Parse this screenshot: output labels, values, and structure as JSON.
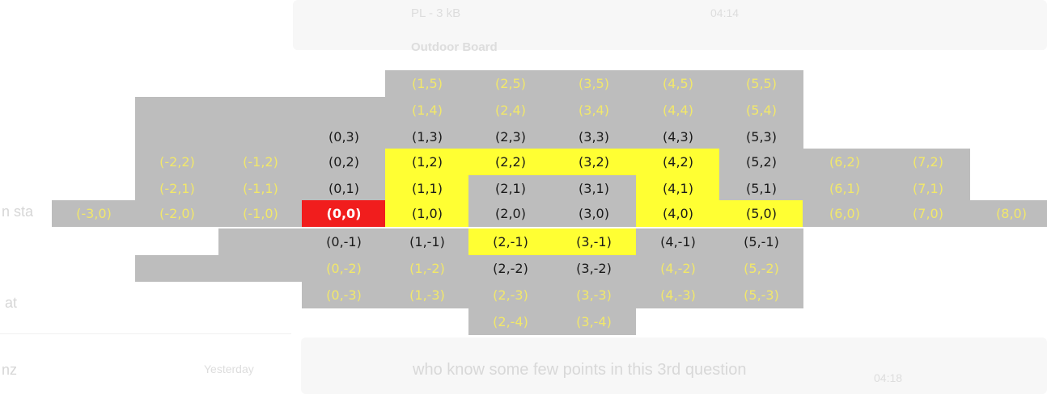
{
  "background_chat": {
    "preview_file_label": "PL - 3 kB",
    "preview_time": "04:14",
    "preview_caption": "Outdoor Board",
    "left_truncated_1": "n sta",
    "left_truncated_2": "at",
    "left_truncated_3": "nz",
    "left_day": "Yesterday",
    "message_text": "who know some few points in this 3rd question",
    "message_time": "04:18"
  },
  "colors": {
    "gray": "#bdbdbd",
    "yellow": "#ffff33",
    "red": "#f11d1d",
    "label_yellow": "#f2e86a",
    "label_black": "#1a1a1a",
    "label_white": "#ffffff"
  },
  "grid": {
    "cells": [
      {
        "label": "(1,5)",
        "fill": "gray",
        "text": "yellow"
      },
      {
        "label": "(2,5)",
        "fill": "gray",
        "text": "yellow"
      },
      {
        "label": "(3,5)",
        "fill": "gray",
        "text": "yellow"
      },
      {
        "label": "(4,5)",
        "fill": "gray",
        "text": "yellow"
      },
      {
        "label": "(5,5)",
        "fill": "gray",
        "text": "yellow"
      },
      {
        "label": "",
        "fill": "gray",
        "text": "yellow"
      },
      {
        "label": "",
        "fill": "gray",
        "text": "yellow"
      },
      {
        "label": "",
        "fill": "gray",
        "text": "yellow"
      },
      {
        "label": "(1,4)",
        "fill": "gray",
        "text": "yellow"
      },
      {
        "label": "(2,4)",
        "fill": "gray",
        "text": "yellow"
      },
      {
        "label": "(3,4)",
        "fill": "gray",
        "text": "yellow"
      },
      {
        "label": "(4,4)",
        "fill": "gray",
        "text": "yellow"
      },
      {
        "label": "(5,4)",
        "fill": "gray",
        "text": "yellow"
      },
      {
        "label": "",
        "fill": "gray",
        "text": "yellow"
      },
      {
        "label": "",
        "fill": "gray",
        "text": "yellow"
      },
      {
        "label": "(0,3)",
        "fill": "gray",
        "text": "black"
      },
      {
        "label": "(1,3)",
        "fill": "gray",
        "text": "black"
      },
      {
        "label": "(2,3)",
        "fill": "gray",
        "text": "black"
      },
      {
        "label": "(3,3)",
        "fill": "gray",
        "text": "black"
      },
      {
        "label": "(4,3)",
        "fill": "gray",
        "text": "black"
      },
      {
        "label": "(5,3)",
        "fill": "gray",
        "text": "black"
      },
      {
        "label": "(-2,2)",
        "fill": "gray",
        "text": "yellow"
      },
      {
        "label": "(-1,2)",
        "fill": "gray",
        "text": "yellow"
      },
      {
        "label": "(0,2)",
        "fill": "gray",
        "text": "black"
      },
      {
        "label": "(1,2)",
        "fill": "yellow",
        "text": "black"
      },
      {
        "label": "(2,2)",
        "fill": "yellow",
        "text": "black"
      },
      {
        "label": "(3,2)",
        "fill": "yellow",
        "text": "black"
      },
      {
        "label": "(4,2)",
        "fill": "yellow",
        "text": "black"
      },
      {
        "label": "(5,2)",
        "fill": "gray",
        "text": "black"
      },
      {
        "label": "(6,2)",
        "fill": "gray",
        "text": "yellow"
      },
      {
        "label": "(7,2)",
        "fill": "gray",
        "text": "yellow"
      },
      {
        "label": "(-2,1)",
        "fill": "gray",
        "text": "yellow"
      },
      {
        "label": "(-1,1)",
        "fill": "gray",
        "text": "yellow"
      },
      {
        "label": "(0,1)",
        "fill": "gray",
        "text": "black"
      },
      {
        "label": "(1,1)",
        "fill": "yellow",
        "text": "black"
      },
      {
        "label": "(2,1)",
        "fill": "gray",
        "text": "black"
      },
      {
        "label": "(3,1)",
        "fill": "gray",
        "text": "black"
      },
      {
        "label": "(4,1)",
        "fill": "yellow",
        "text": "black"
      },
      {
        "label": "(5,1)",
        "fill": "gray",
        "text": "black"
      },
      {
        "label": "(6,1)",
        "fill": "gray",
        "text": "yellow"
      },
      {
        "label": "(7,1)",
        "fill": "gray",
        "text": "yellow"
      },
      {
        "label": "(-3,0)",
        "fill": "gray",
        "text": "yellow"
      },
      {
        "label": "(-2,0)",
        "fill": "gray",
        "text": "yellow"
      },
      {
        "label": "(-1,0)",
        "fill": "gray",
        "text": "yellow"
      },
      {
        "label": "(0,0)",
        "fill": "red",
        "text": "white"
      },
      {
        "label": "(1,0)",
        "fill": "yellow",
        "text": "black"
      },
      {
        "label": "(2,0)",
        "fill": "gray",
        "text": "black"
      },
      {
        "label": "(3,0)",
        "fill": "gray",
        "text": "black"
      },
      {
        "label": "(4,0)",
        "fill": "yellow",
        "text": "black"
      },
      {
        "label": "(5,0)",
        "fill": "yellow",
        "text": "black"
      },
      {
        "label": "(6,0)",
        "fill": "gray",
        "text": "yellow"
      },
      {
        "label": "(7,0)",
        "fill": "gray",
        "text": "yellow"
      },
      {
        "label": "(8,0)",
        "fill": "gray",
        "text": "yellow"
      },
      {
        "label": "",
        "fill": "gray",
        "text": "yellow"
      },
      {
        "label": "(0,-1)",
        "fill": "gray",
        "text": "black"
      },
      {
        "label": "(1,-1)",
        "fill": "gray",
        "text": "black"
      },
      {
        "label": "(2,-1)",
        "fill": "yellow",
        "text": "black"
      },
      {
        "label": "(3,-1)",
        "fill": "yellow",
        "text": "black"
      },
      {
        "label": "(4,-1)",
        "fill": "gray",
        "text": "black"
      },
      {
        "label": "(5,-1)",
        "fill": "gray",
        "text": "black"
      },
      {
        "label": "",
        "fill": "gray",
        "text": "yellow"
      },
      {
        "label": "",
        "fill": "gray",
        "text": "yellow"
      },
      {
        "label": "(0,-2)",
        "fill": "gray",
        "text": "yellow"
      },
      {
        "label": "(1,-2)",
        "fill": "gray",
        "text": "yellow"
      },
      {
        "label": "(2,-2)",
        "fill": "gray",
        "text": "black"
      },
      {
        "label": "(3,-2)",
        "fill": "gray",
        "text": "black"
      },
      {
        "label": "(4,-2)",
        "fill": "gray",
        "text": "yellow"
      },
      {
        "label": "(5,-2)",
        "fill": "gray",
        "text": "yellow"
      },
      {
        "label": "(0,-3)",
        "fill": "gray",
        "text": "yellow"
      },
      {
        "label": "(1,-3)",
        "fill": "gray",
        "text": "yellow"
      },
      {
        "label": "(2,-3)",
        "fill": "gray",
        "text": "yellow"
      },
      {
        "label": "(3,-3)",
        "fill": "gray",
        "text": "yellow"
      },
      {
        "label": "(4,-3)",
        "fill": "gray",
        "text": "yellow"
      },
      {
        "label": "(5,-3)",
        "fill": "gray",
        "text": "yellow"
      },
      {
        "label": "(2,-4)",
        "fill": "gray",
        "text": "yellow"
      },
      {
        "label": "(3,-4)",
        "fill": "gray",
        "text": "yellow"
      }
    ]
  }
}
